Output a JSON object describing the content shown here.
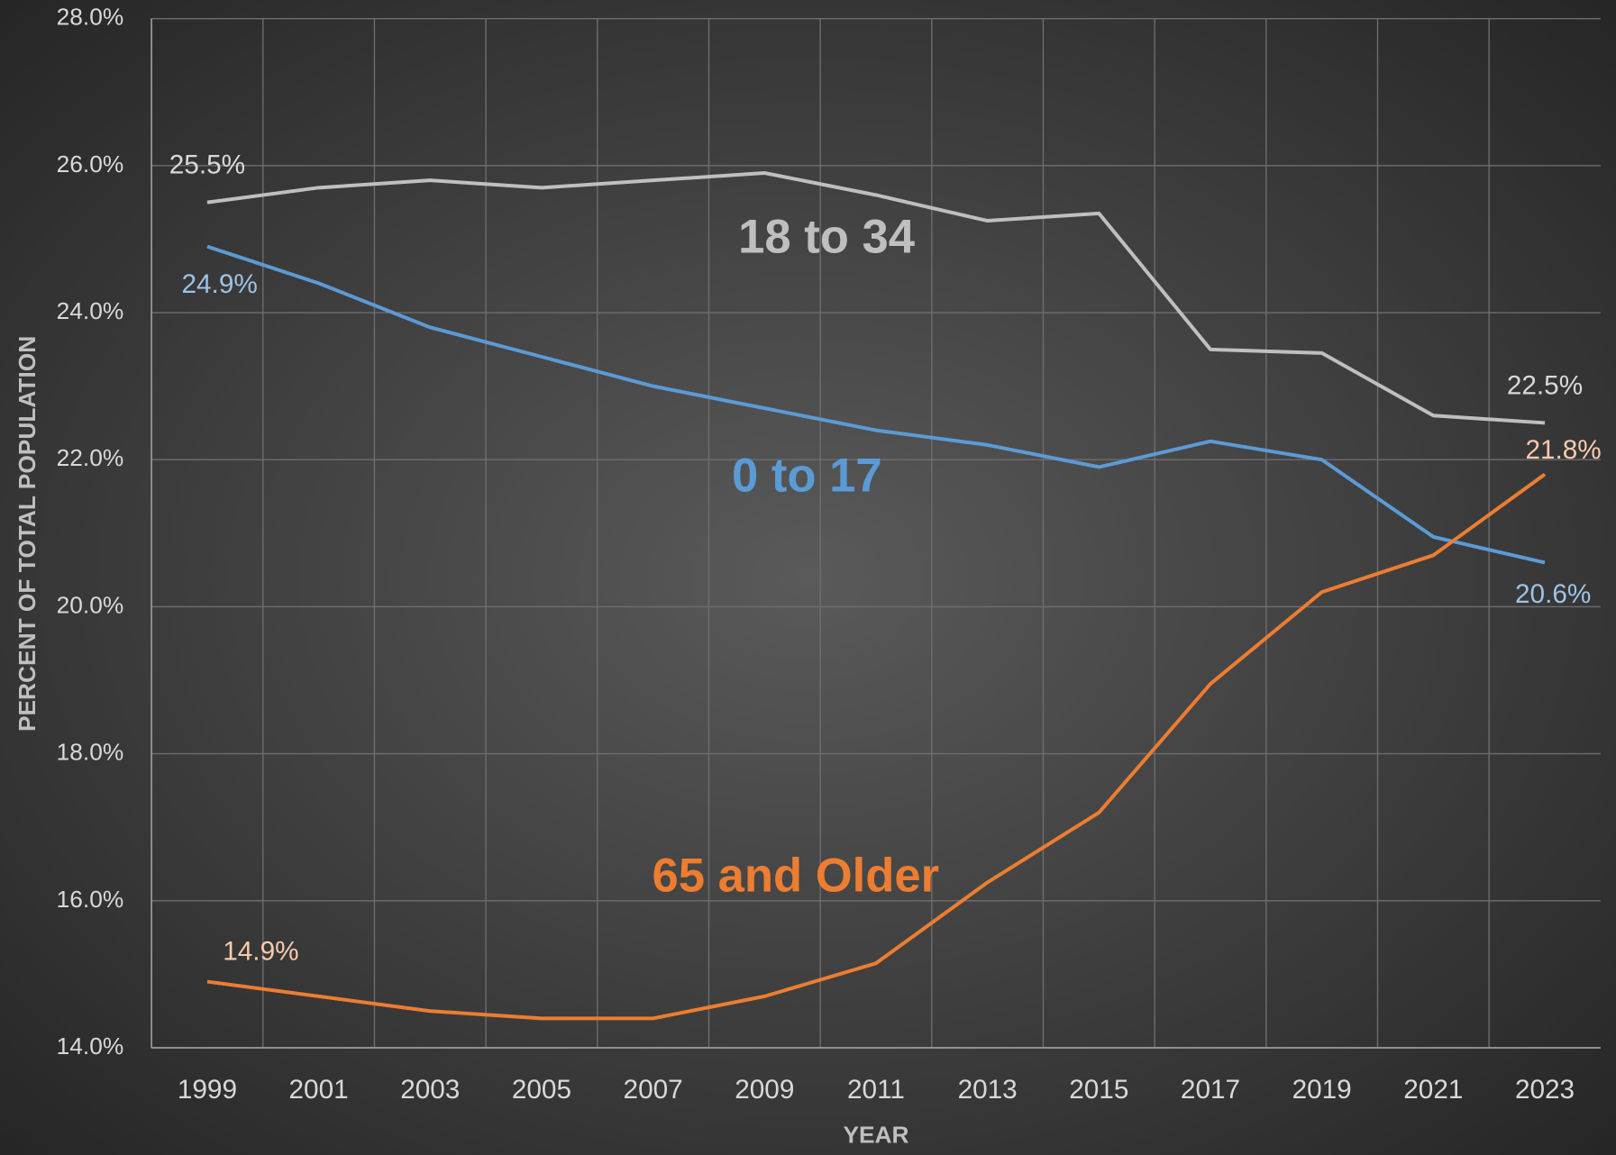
{
  "chart_data": {
    "type": "line",
    "x_label": "YEAR",
    "y_label": "PERCENT OF TOTAL POPULATION",
    "categories": [
      "1999",
      "2001",
      "2003",
      "2005",
      "2007",
      "2009",
      "2011",
      "2013",
      "2015",
      "2017",
      "2019",
      "2021",
      "2023"
    ],
    "series": [
      {
        "name": "18 to 34",
        "color": "#bfbfbf",
        "label_color": "#d9d9d9",
        "values": [
          25.5,
          25.7,
          25.8,
          25.7,
          25.8,
          25.9,
          25.6,
          25.25,
          25.35,
          23.5,
          23.45,
          22.6,
          22.5
        ],
        "value_labels": [
          "25.5%",
          null,
          null,
          null,
          null,
          null,
          null,
          null,
          null,
          null,
          null,
          null,
          "22.5%"
        ]
      },
      {
        "name": "0 to 17",
        "color": "#5b9bd5",
        "label_color": "#9dc3e6",
        "values": [
          24.9,
          24.4,
          23.8,
          23.4,
          23.0,
          22.7,
          22.4,
          22.2,
          21.9,
          22.25,
          22.0,
          20.95,
          20.6
        ],
        "value_labels": [
          "24.9%",
          null,
          null,
          null,
          null,
          null,
          null,
          null,
          null,
          null,
          null,
          null,
          "20.6%"
        ]
      },
      {
        "name": "65 and Older",
        "color": "#ed7d31",
        "label_color": "#f8cbad",
        "values": [
          14.9,
          14.7,
          14.5,
          14.4,
          14.4,
          14.7,
          15.15,
          16.25,
          17.2,
          18.95,
          20.2,
          20.7,
          21.8
        ],
        "value_labels": [
          "14.9%",
          null,
          null,
          null,
          null,
          null,
          null,
          null,
          null,
          null,
          null,
          null,
          "21.8%"
        ]
      }
    ],
    "ylim": [
      14,
      28
    ],
    "yticks": [
      {
        "value": 14,
        "label": "14.0%"
      },
      {
        "value": 16,
        "label": "16.0%"
      },
      {
        "value": 18,
        "label": "18.0%"
      },
      {
        "value": 20,
        "label": "20.0%"
      },
      {
        "value": 22,
        "label": "22.0%"
      },
      {
        "value": 24,
        "label": "24.0%"
      },
      {
        "value": 26,
        "label": "26.0%"
      },
      {
        "value": 28,
        "label": "28.0%"
      }
    ],
    "grid": true
  }
}
